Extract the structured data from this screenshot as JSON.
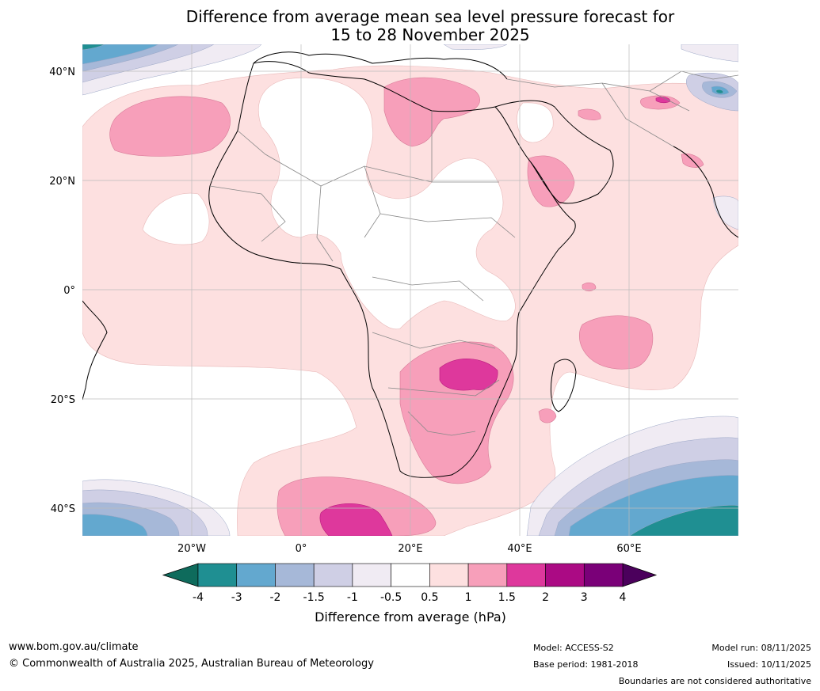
{
  "title": {
    "line1": "Difference from average mean sea level pressure forecast for",
    "line2": "15 to 28 November 2025"
  },
  "map": {
    "lat_labels": [
      "40°N",
      "20°N",
      "0°",
      "20°S",
      "40°S"
    ],
    "lon_labels": [
      "20°W",
      "0°",
      "20°E",
      "40°E",
      "60°E"
    ],
    "lat_range": [
      -45,
      45
    ],
    "lon_range": [
      -40,
      80
    ]
  },
  "legend": {
    "title": "Difference from average (hPa)",
    "tick_labels": [
      "-4",
      "-3",
      "-2",
      "-1.5",
      "-1",
      "-0.5",
      "0.5",
      "1",
      "1.5",
      "2",
      "3",
      "4"
    ],
    "bin_colors": [
      "#1f8f92",
      "#63a8cf",
      "#a6b8d8",
      "#cfcfe5",
      "#f0ebf3",
      "#ffffff",
      "#fde0e0",
      "#f79fba",
      "#de389c",
      "#ab0a84",
      "#7a0078"
    ],
    "under_color": "#0e6b5c",
    "over_color": "#4b005c"
  },
  "colors": {
    "pink_light": "#fde0e0",
    "pink_mid": "#f79fba",
    "pink_strong": "#de389c",
    "magenta": "#ab0a84",
    "neg_light": "#f0ebf3",
    "neg_lav": "#cfcfe5",
    "neg_blue": "#a6b8d8",
    "neg_sky": "#63a8cf",
    "neg_teal": "#1f8f92"
  },
  "footer": {
    "url": "www.bom.gov.au/climate",
    "copyright": "© Commonwealth of Australia 2025, Australian Bureau of Meteorology",
    "model": "Model: ACCESS-S2",
    "base_period": "Base period: 1981-2018",
    "model_run": "Model run: 08/11/2025",
    "issued": "Issued: 10/11/2025",
    "disclaimer": "Boundaries are not considered authoritative"
  }
}
